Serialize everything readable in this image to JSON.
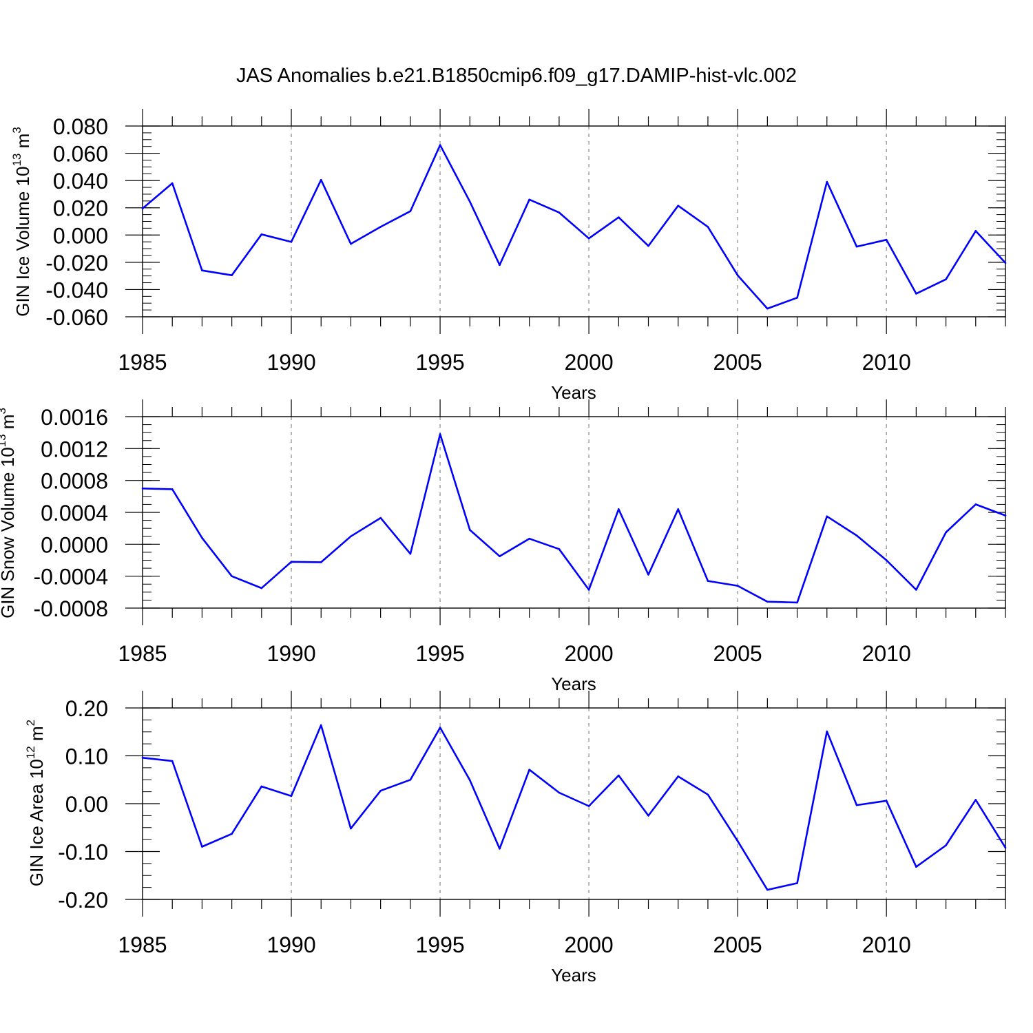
{
  "title": "JAS Anomalies b.e21.B1850cmip6.f09_g17.DAMIP-hist-vlc.002",
  "line_color": "#0000ff",
  "chart_data": [
    {
      "type": "line",
      "ylabel": "GIN Ice Volume 10",
      "ylabel_exp": "13",
      "ylabel_unit": " m",
      "ylabel_unit_exp": "3",
      "xlabel": "Years",
      "xlim": [
        1985,
        2014
      ],
      "ylim": [
        -0.06,
        0.08
      ],
      "yticks": [
        -0.06,
        -0.04,
        -0.02,
        0.0,
        0.02,
        0.04,
        0.06,
        0.08
      ],
      "yticklabels": [
        "-0.060",
        "-0.040",
        "-0.020",
        "0.000",
        "0.020",
        "0.040",
        "0.060",
        "0.080"
      ],
      "yminor": 0.005,
      "xticks": [
        1985,
        1990,
        1995,
        2000,
        2005,
        2010
      ],
      "xticklabels": [
        "1985",
        "1990",
        "1995",
        "2000",
        "2005",
        "2010"
      ],
      "x": [
        1985,
        1986,
        1987,
        1988,
        1989,
        1990,
        1991,
        1992,
        1993,
        1994,
        1995,
        1996,
        1997,
        1998,
        1999,
        2000,
        2001,
        2002,
        2003,
        2004,
        2005,
        2006,
        2007,
        2008,
        2009,
        2010,
        2011,
        2012,
        2013,
        2014
      ],
      "values": [
        0.0195,
        0.038,
        -0.026,
        -0.0295,
        0.0005,
        -0.005,
        0.0405,
        -0.0065,
        0.006,
        0.0175,
        0.066,
        0.0245,
        -0.022,
        0.026,
        0.0165,
        -0.0025,
        0.013,
        -0.008,
        0.0215,
        0.006,
        -0.0295,
        -0.054,
        -0.046,
        0.039,
        -0.0085,
        -0.0035,
        -0.043,
        -0.0325,
        0.003,
        -0.0205
      ]
    },
    {
      "type": "line",
      "ylabel": "GIN Snow Volume 10",
      "ylabel_exp": "13",
      "ylabel_unit": " m",
      "ylabel_unit_exp": "3",
      "xlabel": "Years",
      "xlim": [
        1985,
        2014
      ],
      "ylim": [
        -0.0008,
        0.0016
      ],
      "yticks": [
        -0.0008,
        -0.0004,
        0.0,
        0.0004,
        0.0008,
        0.0012,
        0.0016
      ],
      "yticklabels": [
        "-0.0008",
        "-0.0004",
        "0.0000",
        "0.0004",
        "0.0008",
        "0.0012",
        "0.0016"
      ],
      "yminor": 0.0001,
      "xticks": [
        1985,
        1990,
        1995,
        2000,
        2005,
        2010
      ],
      "xticklabels": [
        "1985",
        "1990",
        "1995",
        "2000",
        "2005",
        "2010"
      ],
      "x": [
        1985,
        1986,
        1987,
        1988,
        1989,
        1990,
        1991,
        1992,
        1993,
        1994,
        1995,
        1996,
        1997,
        1998,
        1999,
        2000,
        2001,
        2002,
        2003,
        2004,
        2005,
        2006,
        2007,
        2008,
        2009,
        2010,
        2011,
        2012,
        2013,
        2014
      ],
      "values": [
        0.0007,
        0.00069,
        8e-05,
        -0.0004,
        -0.00055,
        -0.00022,
        -0.000225,
        0.0001,
        0.00033,
        -0.00012,
        0.00138,
        0.00018,
        -0.00015,
        7e-05,
        -6e-05,
        -0.00057,
        0.00044,
        -0.00038,
        0.00044,
        -0.00046,
        -0.00052,
        -0.00072,
        -0.00073,
        0.00035,
        0.00011,
        -0.0002,
        -0.00057,
        0.00015,
        0.0005,
        0.00036
      ]
    },
    {
      "type": "line",
      "ylabel": "GIN Ice Area 10",
      "ylabel_exp": "12",
      "ylabel_unit": " m",
      "ylabel_unit_exp": "2",
      "xlabel": "Years",
      "xlim": [
        1985,
        2014
      ],
      "ylim": [
        -0.2,
        0.2
      ],
      "yticks": [
        -0.2,
        -0.1,
        0.0,
        0.1,
        0.2
      ],
      "yticklabels": [
        "-0.20",
        "-0.10",
        "0.00",
        "0.10",
        "0.20"
      ],
      "yminor": 0.025,
      "xticks": [
        1985,
        1990,
        1995,
        2000,
        2005,
        2010
      ],
      "xticklabels": [
        "1985",
        "1990",
        "1995",
        "2000",
        "2005",
        "2010"
      ],
      "x": [
        1985,
        1986,
        1987,
        1988,
        1989,
        1990,
        1991,
        1992,
        1993,
        1994,
        1995,
        1996,
        1997,
        1998,
        1999,
        2000,
        2001,
        2002,
        2003,
        2004,
        2005,
        2006,
        2007,
        2008,
        2009,
        2010,
        2011,
        2012,
        2013,
        2014
      ],
      "values": [
        0.096,
        0.089,
        -0.09,
        -0.063,
        0.036,
        0.016,
        0.164,
        -0.052,
        0.027,
        0.05,
        0.159,
        0.049,
        -0.094,
        0.071,
        0.023,
        -0.005,
        0.059,
        -0.025,
        0.057,
        0.019,
        -0.078,
        -0.18,
        -0.166,
        0.151,
        -0.003,
        0.006,
        -0.132,
        -0.087,
        0.008,
        -0.092
      ]
    }
  ]
}
